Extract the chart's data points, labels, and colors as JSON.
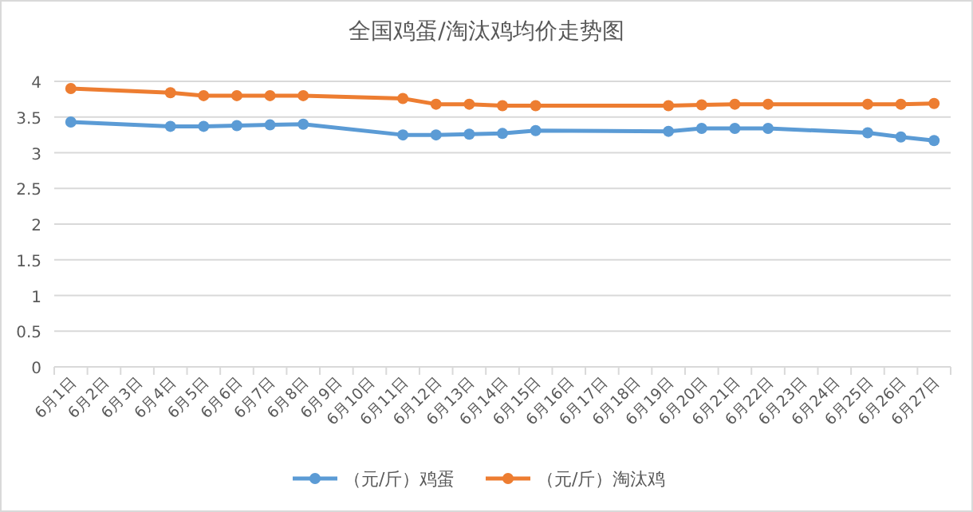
{
  "chart_data": {
    "type": "line",
    "title": "全国鸡蛋/淘汰鸡均价走势图",
    "categories": [
      "6月1日",
      "6月2日",
      "6月3日",
      "6月4日",
      "6月5日",
      "6月6日",
      "6月7日",
      "6月8日",
      "6月9日",
      "6月10日",
      "6月11日",
      "6月12日",
      "6月13日",
      "6月14日",
      "6月15日",
      "6月16日",
      "6月17日",
      "6月18日",
      "6月19日",
      "6月20日",
      "6月21日",
      "6月22日",
      "6月23日",
      "6月24日",
      "6月25日",
      "6月26日",
      "6月27日"
    ],
    "series": [
      {
        "name": "（元/斤）鸡蛋",
        "color": "#5b9bd5",
        "values": [
          3.43,
          null,
          null,
          3.37,
          3.37,
          3.38,
          3.39,
          3.4,
          null,
          null,
          3.25,
          3.25,
          3.26,
          3.27,
          3.31,
          null,
          null,
          null,
          3.3,
          3.34,
          3.34,
          3.34,
          null,
          null,
          3.28,
          3.22,
          3.17
        ]
      },
      {
        "name": "（元/斤）淘汰鸡",
        "color": "#ed7d31",
        "values": [
          3.9,
          null,
          null,
          3.84,
          3.8,
          3.8,
          3.8,
          3.8,
          null,
          null,
          3.76,
          3.68,
          3.68,
          3.66,
          3.66,
          null,
          null,
          null,
          3.66,
          3.67,
          3.68,
          3.68,
          null,
          null,
          3.68,
          3.68,
          3.69
        ]
      }
    ],
    "ylim": [
      0,
      4
    ],
    "yticks": [
      0,
      0.5,
      1,
      1.5,
      2,
      2.5,
      3,
      3.5,
      4
    ],
    "grid": "y",
    "legend": "bottom",
    "marker": "circle",
    "line_style": "solid"
  }
}
